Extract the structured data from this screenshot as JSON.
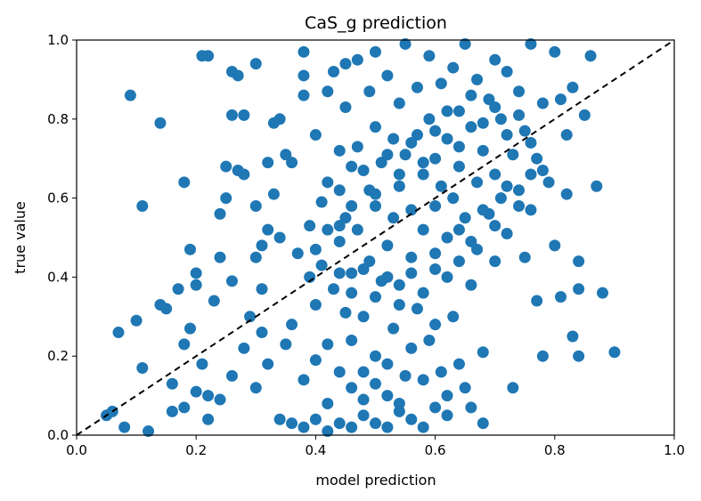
{
  "chart_data": {
    "type": "scatter",
    "title": "CaS_g prediction",
    "xlabel": "model prediction",
    "ylabel": "true value",
    "xlim": [
      0.0,
      1.0
    ],
    "ylim": [
      0.0,
      1.0
    ],
    "xticks": [
      "0.0",
      "0.2",
      "0.4",
      "0.6",
      "0.8",
      "1.0"
    ],
    "yticks": [
      "0.0",
      "0.2",
      "0.4",
      "0.6",
      "0.8",
      "1.0"
    ],
    "grid": false,
    "legend": "none",
    "point_color": "#1f77b4",
    "reference_line": {
      "x": [
        0.0,
        1.0
      ],
      "y": [
        0.0,
        1.0
      ],
      "style": "dashed",
      "color": "#000000"
    },
    "series": [
      {
        "points": [
          [
            0.05,
            0.05
          ],
          [
            0.06,
            0.06
          ],
          [
            0.07,
            0.26
          ],
          [
            0.09,
            0.86
          ],
          [
            0.1,
            0.29
          ],
          [
            0.11,
            0.17
          ],
          [
            0.11,
            0.58
          ],
          [
            0.08,
            0.02
          ],
          [
            0.12,
            0.01
          ],
          [
            0.14,
            0.33
          ],
          [
            0.14,
            0.79
          ],
          [
            0.15,
            0.32
          ],
          [
            0.16,
            0.06
          ],
          [
            0.17,
            0.37
          ],
          [
            0.18,
            0.23
          ],
          [
            0.18,
            0.64
          ],
          [
            0.19,
            0.47
          ],
          [
            0.19,
            0.27
          ],
          [
            0.2,
            0.41
          ],
          [
            0.2,
            0.38
          ],
          [
            0.21,
            0.18
          ],
          [
            0.21,
            0.96
          ],
          [
            0.22,
            0.96
          ],
          [
            0.22,
            0.1
          ],
          [
            0.23,
            0.34
          ],
          [
            0.24,
            0.56
          ],
          [
            0.24,
            0.45
          ],
          [
            0.25,
            0.68
          ],
          [
            0.25,
            0.6
          ],
          [
            0.26,
            0.92
          ],
          [
            0.26,
            0.81
          ],
          [
            0.26,
            0.39
          ],
          [
            0.27,
            0.91
          ],
          [
            0.27,
            0.67
          ],
          [
            0.28,
            0.81
          ],
          [
            0.28,
            0.66
          ],
          [
            0.29,
            0.3
          ],
          [
            0.3,
            0.94
          ],
          [
            0.3,
            0.58
          ],
          [
            0.3,
            0.45
          ],
          [
            0.31,
            0.37
          ],
          [
            0.31,
            0.26
          ],
          [
            0.31,
            0.48
          ],
          [
            0.32,
            0.69
          ],
          [
            0.32,
            0.52
          ],
          [
            0.33,
            0.79
          ],
          [
            0.33,
            0.61
          ],
          [
            0.34,
            0.8
          ],
          [
            0.34,
            0.5
          ],
          [
            0.35,
            0.23
          ],
          [
            0.35,
            0.71
          ],
          [
            0.36,
            0.69
          ],
          [
            0.37,
            0.46
          ],
          [
            0.38,
            0.97
          ],
          [
            0.38,
            0.91
          ],
          [
            0.38,
            0.86
          ],
          [
            0.39,
            0.53
          ],
          [
            0.39,
            0.4
          ],
          [
            0.4,
            0.76
          ],
          [
            0.4,
            0.33
          ],
          [
            0.41,
            0.59
          ],
          [
            0.41,
            0.43
          ],
          [
            0.42,
            0.87
          ],
          [
            0.42,
            0.64
          ],
          [
            0.42,
            0.23
          ],
          [
            0.43,
            0.92
          ],
          [
            0.43,
            0.37
          ],
          [
            0.44,
            0.72
          ],
          [
            0.44,
            0.62
          ],
          [
            0.44,
            0.49
          ],
          [
            0.45,
            0.94
          ],
          [
            0.45,
            0.83
          ],
          [
            0.45,
            0.55
          ],
          [
            0.45,
            0.31
          ],
          [
            0.46,
            0.68
          ],
          [
            0.46,
            0.41
          ],
          [
            0.46,
            0.12
          ],
          [
            0.47,
            0.95
          ],
          [
            0.47,
            0.73
          ],
          [
            0.47,
            0.52
          ],
          [
            0.48,
            0.3
          ],
          [
            0.48,
            0.16
          ],
          [
            0.49,
            0.87
          ],
          [
            0.49,
            0.62
          ],
          [
            0.49,
            0.44
          ],
          [
            0.5,
            0.97
          ],
          [
            0.5,
            0.78
          ],
          [
            0.5,
            0.58
          ],
          [
            0.5,
            0.2
          ],
          [
            0.51,
            0.69
          ],
          [
            0.51,
            0.39
          ],
          [
            0.52,
            0.91
          ],
          [
            0.52,
            0.48
          ],
          [
            0.52,
            0.1
          ],
          [
            0.53,
            0.75
          ],
          [
            0.53,
            0.55
          ],
          [
            0.53,
            0.27
          ],
          [
            0.54,
            0.84
          ],
          [
            0.54,
            0.63
          ],
          [
            0.54,
            0.38
          ],
          [
            0.55,
            0.99
          ],
          [
            0.55,
            0.71
          ],
          [
            0.55,
            0.15
          ],
          [
            0.56,
            0.57
          ],
          [
            0.56,
            0.45
          ],
          [
            0.57,
            0.88
          ],
          [
            0.57,
            0.76
          ],
          [
            0.57,
            0.32
          ],
          [
            0.58,
            0.66
          ],
          [
            0.58,
            0.52
          ],
          [
            0.59,
            0.96
          ],
          [
            0.59,
            0.8
          ],
          [
            0.59,
            0.24
          ],
          [
            0.6,
            0.7
          ],
          [
            0.6,
            0.42
          ],
          [
            0.6,
            0.58
          ],
          [
            0.61,
            0.89
          ],
          [
            0.61,
            0.63
          ],
          [
            0.61,
            0.16
          ],
          [
            0.62,
            0.75
          ],
          [
            0.62,
            0.5
          ],
          [
            0.63,
            0.93
          ],
          [
            0.63,
            0.6
          ],
          [
            0.63,
            0.3
          ],
          [
            0.64,
            0.82
          ],
          [
            0.64,
            0.68
          ],
          [
            0.64,
            0.44
          ],
          [
            0.65,
            0.99
          ],
          [
            0.65,
            0.55
          ],
          [
            0.65,
            0.12
          ],
          [
            0.66,
            0.78
          ],
          [
            0.66,
            0.38
          ],
          [
            0.67,
            0.9
          ],
          [
            0.67,
            0.64
          ],
          [
            0.67,
            0.47
          ],
          [
            0.68,
            0.72
          ],
          [
            0.68,
            0.21
          ],
          [
            0.69,
            0.85
          ],
          [
            0.69,
            0.56
          ],
          [
            0.7,
            0.95
          ],
          [
            0.7,
            0.66
          ],
          [
            0.7,
            0.44
          ],
          [
            0.71,
            0.8
          ],
          [
            0.71,
            0.6
          ],
          [
            0.72,
            0.92
          ],
          [
            0.72,
            0.51
          ],
          [
            0.73,
            0.71
          ],
          [
            0.73,
            0.12
          ],
          [
            0.74,
            0.87
          ],
          [
            0.74,
            0.62
          ],
          [
            0.75,
            0.77
          ],
          [
            0.75,
            0.45
          ],
          [
            0.76,
            0.99
          ],
          [
            0.76,
            0.57
          ],
          [
            0.77,
            0.7
          ],
          [
            0.77,
            0.34
          ],
          [
            0.78,
            0.84
          ],
          [
            0.78,
            0.2
          ],
          [
            0.79,
            0.64
          ],
          [
            0.8,
            0.97
          ],
          [
            0.8,
            0.48
          ],
          [
            0.81,
            0.85
          ],
          [
            0.81,
            0.35
          ],
          [
            0.82,
            0.76
          ],
          [
            0.82,
            0.61
          ],
          [
            0.83,
            0.88
          ],
          [
            0.83,
            0.25
          ],
          [
            0.84,
            0.44
          ],
          [
            0.84,
            0.2
          ],
          [
            0.85,
            0.81
          ],
          [
            0.86,
            0.96
          ],
          [
            0.87,
            0.63
          ],
          [
            0.88,
            0.36
          ],
          [
            0.9,
            0.21
          ],
          [
            0.84,
            0.37
          ],
          [
            0.34,
            0.04
          ],
          [
            0.36,
            0.03
          ],
          [
            0.38,
            0.02
          ],
          [
            0.4,
            0.04
          ],
          [
            0.42,
            0.01
          ],
          [
            0.44,
            0.03
          ],
          [
            0.46,
            0.02
          ],
          [
            0.48,
            0.05
          ],
          [
            0.5,
            0.03
          ],
          [
            0.52,
            0.02
          ],
          [
            0.54,
            0.06
          ],
          [
            0.56,
            0.04
          ],
          [
            0.58,
            0.02
          ],
          [
            0.6,
            0.07
          ],
          [
            0.62,
            0.05
          ],
          [
            0.68,
            0.03
          ],
          [
            0.3,
            0.12
          ],
          [
            0.32,
            0.18
          ],
          [
            0.28,
            0.22
          ],
          [
            0.26,
            0.15
          ],
          [
            0.24,
            0.09
          ],
          [
            0.22,
            0.04
          ],
          [
            0.2,
            0.11
          ],
          [
            0.18,
            0.07
          ],
          [
            0.16,
            0.13
          ],
          [
            0.36,
            0.28
          ],
          [
            0.38,
            0.14
          ],
          [
            0.4,
            0.19
          ],
          [
            0.42,
            0.08
          ],
          [
            0.44,
            0.16
          ],
          [
            0.46,
            0.24
          ],
          [
            0.48,
            0.09
          ],
          [
            0.5,
            0.13
          ],
          [
            0.52,
            0.18
          ],
          [
            0.54,
            0.08
          ],
          [
            0.56,
            0.22
          ],
          [
            0.58,
            0.14
          ],
          [
            0.6,
            0.28
          ],
          [
            0.62,
            0.1
          ],
          [
            0.64,
            0.18
          ],
          [
            0.66,
            0.07
          ],
          [
            0.44,
            0.53
          ],
          [
            0.46,
            0.58
          ],
          [
            0.48,
            0.67
          ],
          [
            0.5,
            0.61
          ],
          [
            0.52,
            0.71
          ],
          [
            0.54,
            0.66
          ],
          [
            0.56,
            0.74
          ],
          [
            0.58,
            0.69
          ],
          [
            0.6,
            0.77
          ],
          [
            0.62,
            0.82
          ],
          [
            0.64,
            0.73
          ],
          [
            0.66,
            0.86
          ],
          [
            0.68,
            0.79
          ],
          [
            0.7,
            0.83
          ],
          [
            0.72,
            0.76
          ],
          [
            0.74,
            0.81
          ],
          [
            0.76,
            0.74
          ],
          [
            0.78,
            0.67
          ],
          [
            0.4,
            0.47
          ],
          [
            0.42,
            0.52
          ],
          [
            0.44,
            0.41
          ],
          [
            0.46,
            0.36
          ],
          [
            0.48,
            0.42
          ],
          [
            0.5,
            0.35
          ],
          [
            0.52,
            0.4
          ],
          [
            0.54,
            0.33
          ],
          [
            0.56,
            0.41
          ],
          [
            0.58,
            0.36
          ],
          [
            0.6,
            0.46
          ],
          [
            0.62,
            0.4
          ],
          [
            0.64,
            0.52
          ],
          [
            0.66,
            0.49
          ],
          [
            0.68,
            0.57
          ],
          [
            0.7,
            0.53
          ],
          [
            0.72,
            0.63
          ],
          [
            0.74,
            0.58
          ],
          [
            0.76,
            0.66
          ]
        ]
      }
    ]
  }
}
